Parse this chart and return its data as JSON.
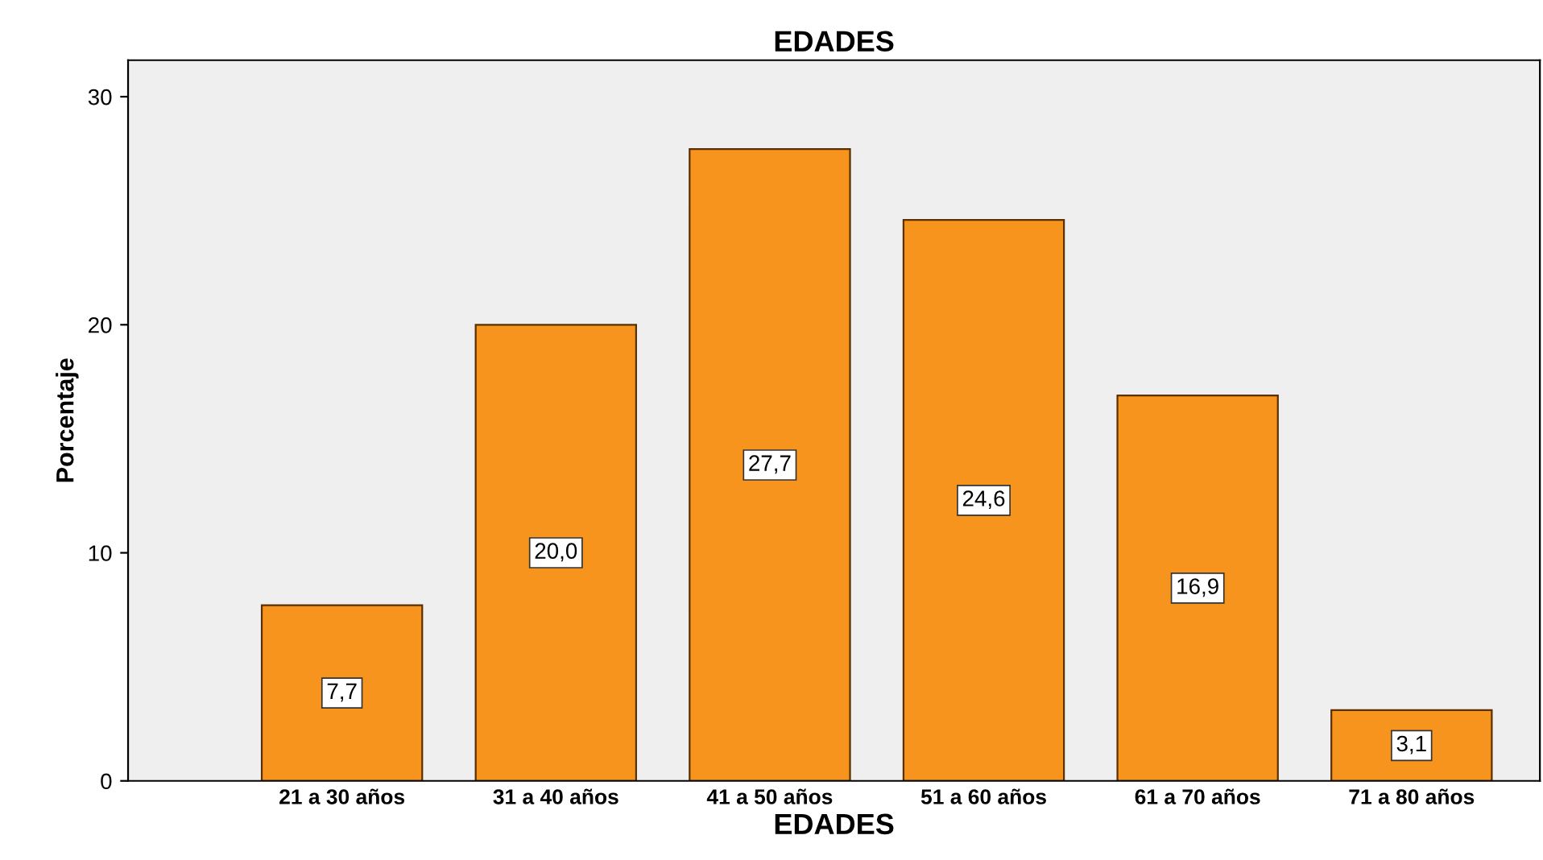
{
  "chart_data": {
    "type": "bar",
    "title": "EDADES",
    "xlabel": "EDADES",
    "ylabel": "Porcentaje",
    "categories": [
      "21 a 30 años",
      "31 a 40 años",
      "41 a 50 años",
      "51 a 60 años",
      "61 a 70 años",
      "71 a 80 años"
    ],
    "values": [
      7.7,
      20.0,
      27.7,
      24.6,
      16.9,
      3.1
    ],
    "value_labels": [
      "7,7",
      "20,0",
      "27,7",
      "24,6",
      "16,9",
      "3,1"
    ],
    "color": "#f7941d",
    "ylim": [
      0,
      31.6
    ],
    "yticks": [
      0,
      10,
      20,
      30
    ],
    "grid": false,
    "legend": false
  }
}
